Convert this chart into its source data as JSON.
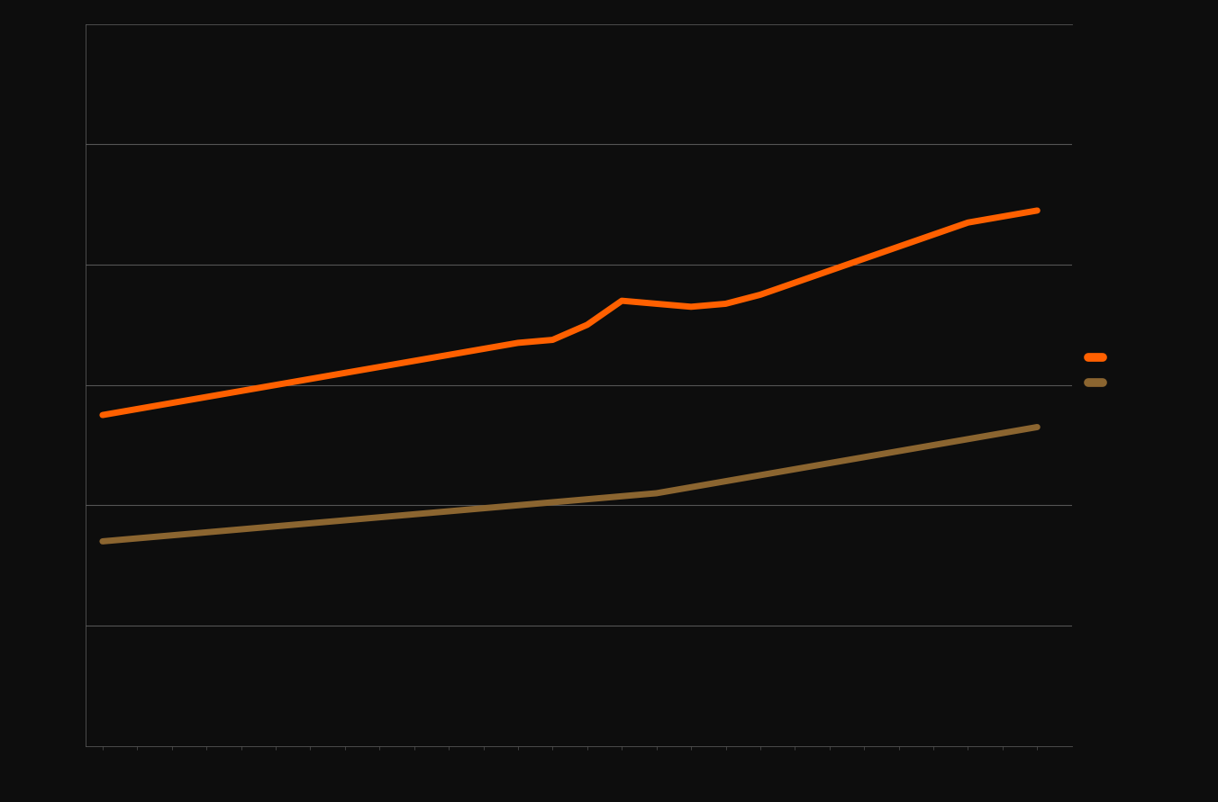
{
  "background_color": "#0d0d0d",
  "plot_bg_color": "#0d0d0d",
  "grid_color": "#555555",
  "orange_color": "#ff6000",
  "brown_color": "#8B6530",
  "line_width": 5.0,
  "orange_x": [
    0,
    1,
    2,
    3,
    4,
    5,
    6,
    7,
    8,
    9,
    10,
    11,
    12,
    13,
    14,
    15,
    16,
    17,
    18,
    19,
    20,
    21,
    22,
    23,
    24,
    25,
    26,
    27
  ],
  "orange_y": [
    55,
    56,
    57,
    58,
    59,
    60,
    61,
    62,
    63,
    64,
    65,
    66,
    67,
    67.5,
    70,
    74,
    73.5,
    73,
    73.5,
    75,
    77,
    79,
    81,
    83,
    85,
    87,
    88,
    89
  ],
  "brown_x": [
    0,
    1,
    2,
    3,
    4,
    5,
    6,
    7,
    8,
    9,
    10,
    11,
    12,
    13,
    14,
    15,
    16,
    17,
    18,
    19,
    20,
    21,
    22,
    23,
    24,
    25,
    26,
    27
  ],
  "brown_y": [
    34,
    34.5,
    35,
    35.5,
    36,
    36.5,
    37,
    37.5,
    38,
    38.5,
    39,
    39.5,
    40,
    40.5,
    41,
    41.5,
    42,
    43,
    44,
    45,
    46,
    47,
    48,
    49,
    50,
    51,
    52,
    53
  ],
  "ylim": [
    0,
    120
  ],
  "xlim": [
    -0.5,
    28
  ],
  "grid_yticks": [
    20,
    40,
    60,
    80,
    100
  ],
  "n_xticks": 28,
  "tick_color": "#555555",
  "spine_color": "#555555"
}
